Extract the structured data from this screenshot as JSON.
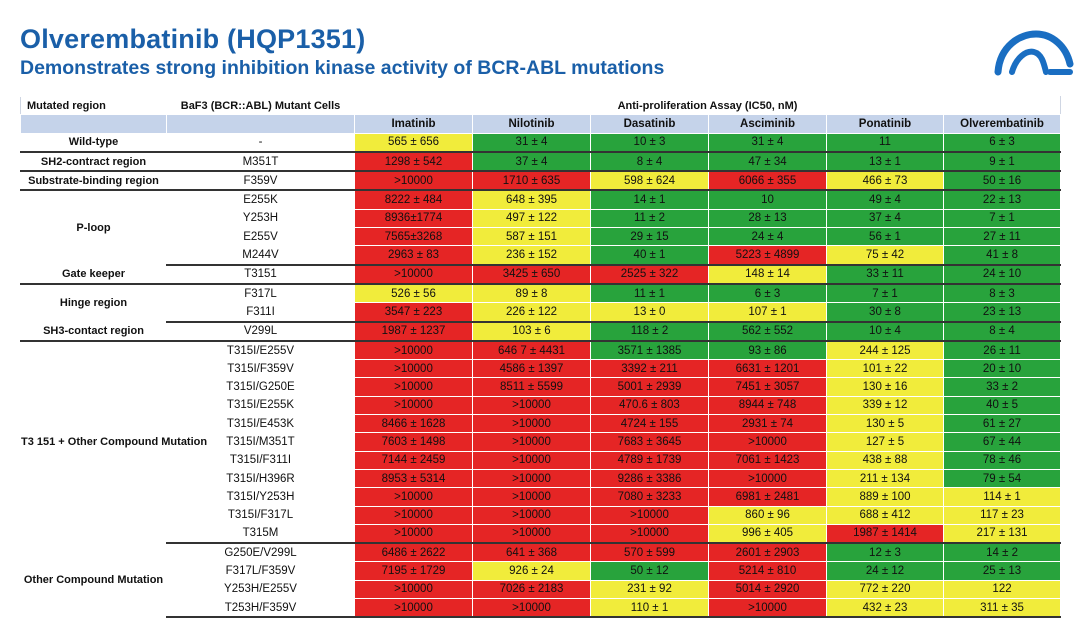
{
  "header": {
    "title": "Olverembatinib (HQP1351)",
    "subtitle": "Demonstrates strong inhibition kinase activity of BCR-ABL mutations"
  },
  "logo": {
    "icon": "company-logo-icon"
  },
  "colors": {
    "red": "#e52525",
    "yellow": "#f1ec3b",
    "green": "#28a33c",
    "header_bg": "#c5d3ea",
    "title": "#1a5fa8"
  },
  "table": {
    "col_region": "Mutated region",
    "col_cells": "BaF3 (BCR::ABL) Mutant Cells",
    "col_assay": "Anti-proliferation Assay (IC50, nM)",
    "drugs": [
      "Imatinib",
      "Nilotinib",
      "Dasatinib",
      "Asciminib",
      "Ponatinib",
      "Olverembatinib"
    ],
    "groups": [
      {
        "region": "Wild-type",
        "rows": [
          {
            "cell": "-",
            "values": [
              {
                "text": "565 ± 656",
                "c": "yellow"
              },
              {
                "text": "31 ± 4",
                "c": "green"
              },
              {
                "text": "10 ± 3",
                "c": "green"
              },
              {
                "text": "31 ± 4",
                "c": "green"
              },
              {
                "text": "11",
                "c": "green"
              },
              {
                "text": "6 ± 3",
                "c": "green"
              }
            ]
          }
        ]
      },
      {
        "region": "SH2-contract region",
        "rows": [
          {
            "cell": "M351T",
            "values": [
              {
                "text": "1298 ± 542",
                "c": "red"
              },
              {
                "text": "37 ± 4",
                "c": "green"
              },
              {
                "text": "8 ± 4",
                "c": "green"
              },
              {
                "text": "47 ± 34",
                "c": "green"
              },
              {
                "text": "13 ± 1",
                "c": "green"
              },
              {
                "text": "9 ± 1",
                "c": "green"
              }
            ]
          }
        ]
      },
      {
        "region": "Substrate-binding region",
        "rows": [
          {
            "cell": "F359V",
            "values": [
              {
                "text": ">10000",
                "c": "red"
              },
              {
                "text": "1710 ± 635",
                "c": "red"
              },
              {
                "text": "598 ± 624",
                "c": "yellow"
              },
              {
                "text": "6066 ± 355",
                "c": "red"
              },
              {
                "text": "466 ± 73",
                "c": "yellow"
              },
              {
                "text": "50 ± 16",
                "c": "green"
              }
            ]
          }
        ]
      },
      {
        "region": "P-loop",
        "rows": [
          {
            "cell": "E255K",
            "values": [
              {
                "text": "8222 ± 484",
                "c": "red"
              },
              {
                "text": "648 ± 395",
                "c": "yellow"
              },
              {
                "text": "14 ± 1",
                "c": "green"
              },
              {
                "text": "10",
                "c": "green"
              },
              {
                "text": "49 ± 4",
                "c": "green"
              },
              {
                "text": "22 ± 13",
                "c": "green"
              }
            ]
          },
          {
            "cell": "Y253H",
            "values": [
              {
                "text": "8936±1774",
                "c": "red"
              },
              {
                "text": "497 ± 122",
                "c": "yellow"
              },
              {
                "text": "11 ± 2",
                "c": "green"
              },
              {
                "text": "28 ± 13",
                "c": "green"
              },
              {
                "text": "37 ± 4",
                "c": "green"
              },
              {
                "text": "7 ± 1",
                "c": "green"
              }
            ]
          },
          {
            "cell": "E255V",
            "values": [
              {
                "text": "7565±3268",
                "c": "red"
              },
              {
                "text": "587 ± 151",
                "c": "yellow"
              },
              {
                "text": "29 ± 15",
                "c": "green"
              },
              {
                "text": "24 ± 4",
                "c": "green"
              },
              {
                "text": "56 ± 1",
                "c": "green"
              },
              {
                "text": "27 ± 11",
                "c": "green"
              }
            ]
          },
          {
            "cell": "M244V",
            "values": [
              {
                "text": "2963 ± 83",
                "c": "red"
              },
              {
                "text": "236 ± 152",
                "c": "yellow"
              },
              {
                "text": "40 ± 1",
                "c": "green"
              },
              {
                "text": "5223 ± 4899",
                "c": "red"
              },
              {
                "text": "75 ± 42",
                "c": "yellow"
              },
              {
                "text": "41 ± 8",
                "c": "green"
              }
            ]
          }
        ]
      },
      {
        "region": "Gate keeper",
        "rows": [
          {
            "cell": "T3151",
            "values": [
              {
                "text": ">10000",
                "c": "red"
              },
              {
                "text": "3425 ± 650",
                "c": "red"
              },
              {
                "text": "2525 ± 322",
                "c": "red"
              },
              {
                "text": "148 ± 14",
                "c": "yellow"
              },
              {
                "text": "33 ± 11",
                "c": "green"
              },
              {
                "text": "24 ± 10",
                "c": "green"
              }
            ]
          }
        ]
      },
      {
        "region": "Hinge region",
        "rows": [
          {
            "cell": "F317L",
            "values": [
              {
                "text": "526 ± 56",
                "c": "yellow"
              },
              {
                "text": "89 ± 8",
                "c": "yellow"
              },
              {
                "text": "11 ± 1",
                "c": "green"
              },
              {
                "text": "6 ± 3",
                "c": "green"
              },
              {
                "text": "7 ± 1",
                "c": "green"
              },
              {
                "text": "8 ± 3",
                "c": "green"
              }
            ]
          },
          {
            "cell": "F311I",
            "values": [
              {
                "text": "3547 ± 223",
                "c": "red"
              },
              {
                "text": "226 ± 122",
                "c": "yellow"
              },
              {
                "text": "13 ± 0",
                "c": "yellow"
              },
              {
                "text": "107 ± 1",
                "c": "yellow"
              },
              {
                "text": "30 ± 8",
                "c": "green"
              },
              {
                "text": "23 ± 13",
                "c": "green"
              }
            ]
          }
        ]
      },
      {
        "region": "SH3-contact region",
        "rows": [
          {
            "cell": "V299L",
            "values": [
              {
                "text": "1987 ± 1237",
                "c": "red"
              },
              {
                "text": "103 ± 6",
                "c": "yellow"
              },
              {
                "text": "118 ± 2",
                "c": "green"
              },
              {
                "text": "562 ± 552",
                "c": "green"
              },
              {
                "text": "10 ± 4",
                "c": "green"
              },
              {
                "text": "8 ± 4",
                "c": "green"
              }
            ]
          }
        ]
      },
      {
        "region": "T3 151 + Other Compound Mutation",
        "rows": [
          {
            "cell": "T315I/E255V",
            "values": [
              {
                "text": ">10000",
                "c": "red"
              },
              {
                "text": "646 7 ± 4431",
                "c": "red"
              },
              {
                "text": "3571 ± 1385",
                "c": "green"
              },
              {
                "text": "93 ± 86",
                "c": "green"
              },
              {
                "text": "244 ± 125",
                "c": "yellow"
              },
              {
                "text": "26 ± 11",
                "c": "green"
              }
            ]
          },
          {
            "cell": "T315I/F359V",
            "values": [
              {
                "text": ">10000",
                "c": "red"
              },
              {
                "text": "4586 ± 1397",
                "c": "red"
              },
              {
                "text": "3392 ± 211",
                "c": "red"
              },
              {
                "text": "6631 ± 1201",
                "c": "red"
              },
              {
                "text": "101 ± 22",
                "c": "yellow"
              },
              {
                "text": "20 ± 10",
                "c": "green"
              }
            ]
          },
          {
            "cell": "T315I/G250E",
            "values": [
              {
                "text": ">10000",
                "c": "red"
              },
              {
                "text": "8511 ± 5599",
                "c": "red"
              },
              {
                "text": "5001 ± 2939",
                "c": "red"
              },
              {
                "text": "7451 ± 3057",
                "c": "red"
              },
              {
                "text": "130 ± 16",
                "c": "yellow"
              },
              {
                "text": "33 ± 2",
                "c": "green"
              }
            ]
          },
          {
            "cell": "T315I/E255K",
            "values": [
              {
                "text": ">10000",
                "c": "red"
              },
              {
                "text": ">10000",
                "c": "red"
              },
              {
                "text": "470.6 ± 803",
                "c": "red"
              },
              {
                "text": "8944 ± 748",
                "c": "red"
              },
              {
                "text": "339 ± 12",
                "c": "yellow"
              },
              {
                "text": "40 ± 5",
                "c": "green"
              }
            ]
          },
          {
            "cell": "T315I/E453K",
            "values": [
              {
                "text": "8466 ± 1628",
                "c": "red"
              },
              {
                "text": ">10000",
                "c": "red"
              },
              {
                "text": "4724 ± 155",
                "c": "red"
              },
              {
                "text": "2931 ± 74",
                "c": "red"
              },
              {
                "text": "130 ± 5",
                "c": "yellow"
              },
              {
                "text": "61 ± 27",
                "c": "green"
              }
            ]
          },
          {
            "cell": "T315I/M351T",
            "values": [
              {
                "text": "7603 ± 1498",
                "c": "red"
              },
              {
                "text": ">10000",
                "c": "red"
              },
              {
                "text": "7683 ± 3645",
                "c": "red"
              },
              {
                "text": ">10000",
                "c": "red"
              },
              {
                "text": "127 ± 5",
                "c": "yellow"
              },
              {
                "text": "67 ± 44",
                "c": "green"
              }
            ]
          },
          {
            "cell": "T315I/F311I",
            "values": [
              {
                "text": "7144 ± 2459",
                "c": "red"
              },
              {
                "text": ">10000",
                "c": "red"
              },
              {
                "text": "4789 ± 1739",
                "c": "red"
              },
              {
                "text": "7061 ± 1423",
                "c": "red"
              },
              {
                "text": "438 ± 88",
                "c": "yellow"
              },
              {
                "text": "78 ± 46",
                "c": "green"
              }
            ]
          },
          {
            "cell": "T315I/H396R",
            "values": [
              {
                "text": "8953 ± 5314",
                "c": "red"
              },
              {
                "text": ">10000",
                "c": "red"
              },
              {
                "text": "9286 ± 3386",
                "c": "red"
              },
              {
                "text": ">10000",
                "c": "red"
              },
              {
                "text": "211 ± 134",
                "c": "yellow"
              },
              {
                "text": "79 ± 54",
                "c": "green"
              }
            ]
          },
          {
            "cell": "T315I/Y253H",
            "values": [
              {
                "text": ">10000",
                "c": "red"
              },
              {
                "text": ">10000",
                "c": "red"
              },
              {
                "text": "7080 ± 3233",
                "c": "red"
              },
              {
                "text": "6981 ± 2481",
                "c": "red"
              },
              {
                "text": "889 ± 100",
                "c": "yellow"
              },
              {
                "text": "114 ± 1",
                "c": "yellow"
              }
            ]
          },
          {
            "cell": "T315I/F317L",
            "values": [
              {
                "text": ">10000",
                "c": "red"
              },
              {
                "text": ">10000",
                "c": "red"
              },
              {
                "text": ">10000",
                "c": "red"
              },
              {
                "text": "860 ± 96",
                "c": "yellow"
              },
              {
                "text": "688 ± 412",
                "c": "yellow"
              },
              {
                "text": "117 ± 23",
                "c": "yellow"
              }
            ]
          },
          {
            "cell": "T315M",
            "values": [
              {
                "text": ">10000",
                "c": "red"
              },
              {
                "text": ">10000",
                "c": "red"
              },
              {
                "text": ">10000",
                "c": "red"
              },
              {
                "text": "996 ± 405",
                "c": "yellow"
              },
              {
                "text": "1987 ± 1414",
                "c": "red"
              },
              {
                "text": "217 ± 131",
                "c": "yellow"
              }
            ]
          }
        ]
      },
      {
        "region": "Other Compound Mutation",
        "rows": [
          {
            "cell": "G250E/V299L",
            "values": [
              {
                "text": "6486 ± 2622",
                "c": "red"
              },
              {
                "text": "641 ± 368",
                "c": "red"
              },
              {
                "text": "570 ± 599",
                "c": "red"
              },
              {
                "text": "2601 ± 2903",
                "c": "red"
              },
              {
                "text": "12 ± 3",
                "c": "green"
              },
              {
                "text": "14 ± 2",
                "c": "green"
              }
            ]
          },
          {
            "cell": "F317L/F359V",
            "values": [
              {
                "text": "7195 ± 1729",
                "c": "red"
              },
              {
                "text": "926 ± 24",
                "c": "yellow"
              },
              {
                "text": "50 ± 12",
                "c": "green"
              },
              {
                "text": "5214 ± 810",
                "c": "red"
              },
              {
                "text": "24 ± 12",
                "c": "green"
              },
              {
                "text": "25 ± 13",
                "c": "green"
              }
            ]
          },
          {
            "cell": "Y253H/E255V",
            "values": [
              {
                "text": ">10000",
                "c": "red"
              },
              {
                "text": "7026 ± 2183",
                "c": "red"
              },
              {
                "text": "231 ± 92",
                "c": "yellow"
              },
              {
                "text": "5014 ± 2920",
                "c": "red"
              },
              {
                "text": "772 ± 220",
                "c": "yellow"
              },
              {
                "text": "122",
                "c": "yellow"
              }
            ]
          },
          {
            "cell": "T253H/F359V",
            "values": [
              {
                "text": ">10000",
                "c": "red"
              },
              {
                "text": ">10000",
                "c": "red"
              },
              {
                "text": "110 ± 1",
                "c": "yellow"
              },
              {
                "text": ">10000",
                "c": "red"
              },
              {
                "text": "432 ± 23",
                "c": "yellow"
              },
              {
                "text": "311 ± 35",
                "c": "yellow"
              }
            ]
          }
        ]
      }
    ]
  }
}
